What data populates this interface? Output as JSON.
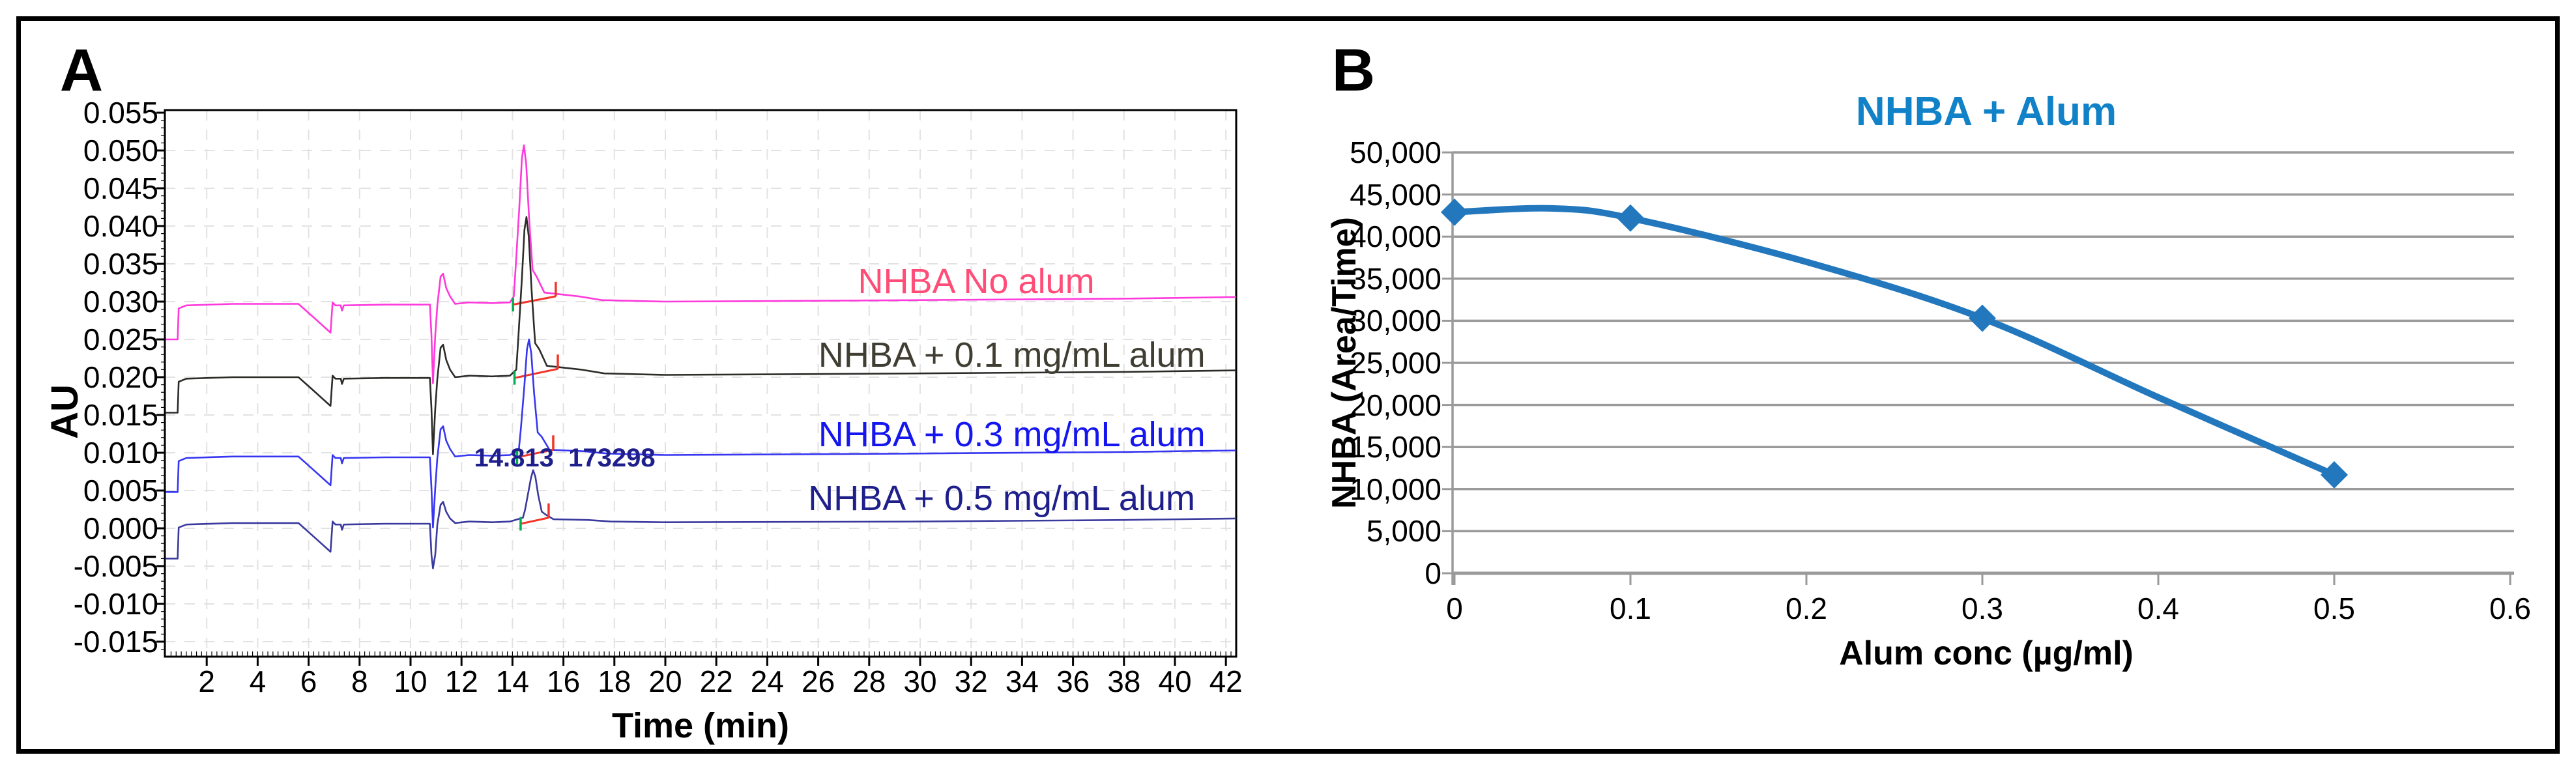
{
  "figure": {
    "panel_a_letter": "A",
    "panel_b_letter": "B"
  },
  "panel_a": {
    "y_axis_label": "AU",
    "x_axis_label": "Time (min)",
    "y_ticks": [
      "0.055",
      "0.050",
      "0.045",
      "0.040",
      "0.035",
      "0.030",
      "0.025",
      "0.020",
      "0.015",
      "0.010",
      "0.005",
      "0.000",
      "-0.005",
      "-0.010",
      "-0.015"
    ],
    "y_tick_values": [
      0.055,
      0.05,
      0.045,
      0.04,
      0.035,
      0.03,
      0.025,
      0.02,
      0.015,
      0.01,
      0.005,
      0.0,
      -0.005,
      -0.01,
      -0.015
    ],
    "x_ticks": [
      2,
      4,
      6,
      8,
      10,
      12,
      14,
      16,
      18,
      20,
      22,
      24,
      26,
      28,
      30,
      32,
      34,
      36,
      38,
      40,
      42
    ],
    "annotation": {
      "text": "14.813  173298",
      "t": 16.05,
      "au": 0.0093,
      "color": "#1F1F8C"
    },
    "integration_colors": {
      "line": "#F23528",
      "start_tick": "#00B050",
      "end_tick": "#F23528"
    }
  },
  "panel_b": {
    "title": "NHBA + Alum",
    "title_color": "#1182C8",
    "x_axis_label": "Alum conc (µg/ml)",
    "y_axis_label": "NHBA (Area/Time)",
    "y_ticks": [
      "50,000",
      "45,000",
      "40,000",
      "35,000",
      "30,000",
      "25,000",
      "20,000",
      "15,000",
      "10,000",
      "5,000",
      "0"
    ],
    "y_tick_values": [
      50000,
      45000,
      40000,
      35000,
      30000,
      25000,
      20000,
      15000,
      10000,
      5000,
      0
    ],
    "x_ticks": [
      "0",
      "0.1",
      "0.2",
      "0.3",
      "0.4",
      "0.5",
      "0.6"
    ],
    "x_tick_values": [
      0,
      0.1,
      0.2,
      0.3,
      0.4,
      0.5,
      0.6
    ],
    "grid_color": "#9A9A9A",
    "line_color": "#2277BD"
  },
  "chart_data": [
    {
      "type": "line",
      "subtype": "chromatogram-overlay",
      "xlabel": "Time (min)",
      "ylabel": "AU",
      "xlim": [
        0.4,
        42.4
      ],
      "ylim": [
        -0.017,
        0.0553
      ],
      "x_tick_step": 2,
      "y_tick_step": 0.005,
      "grid": "dashed-light",
      "series": [
        {
          "name": "NHBA No alum",
          "color": "#FF38DC",
          "baseline_au": 0.0295,
          "label": {
            "text": "NHBA No alum",
            "t": 32.2,
            "au": 0.0327,
            "color": "#FF4D78"
          },
          "integration": {
            "x1": 14.02,
            "y1": 0.0296,
            "x2": 15.7,
            "y2": 0.0307
          },
          "points": [
            [
              0.4,
              0.025
            ],
            [
              0.86,
              0.025
            ],
            [
              0.9,
              0.0291
            ],
            [
              1.2,
              0.0295
            ],
            [
              3.0,
              0.0297
            ],
            [
              5.6,
              0.0297
            ],
            [
              6.2,
              0.0279
            ],
            [
              6.86,
              0.0259
            ],
            [
              6.94,
              0.0299
            ],
            [
              7.05,
              0.0295
            ],
            [
              7.26,
              0.0295
            ],
            [
              7.31,
              0.0288
            ],
            [
              7.38,
              0.0295
            ],
            [
              9.0,
              0.0296
            ],
            [
              10.76,
              0.0296
            ],
            [
              10.82,
              0.0255
            ],
            [
              10.88,
              0.0192
            ],
            [
              10.97,
              0.0255
            ],
            [
              11.05,
              0.0295
            ],
            [
              11.18,
              0.0333
            ],
            [
              11.28,
              0.0337
            ],
            [
              11.4,
              0.0318
            ],
            [
              11.55,
              0.0307
            ],
            [
              11.75,
              0.0297
            ],
            [
              12.3,
              0.0299
            ],
            [
              13.2,
              0.0298
            ],
            [
              13.9,
              0.0299
            ],
            [
              14.05,
              0.0307
            ],
            [
              14.13,
              0.0348
            ],
            [
              14.27,
              0.0426
            ],
            [
              14.37,
              0.049
            ],
            [
              14.45,
              0.0507
            ],
            [
              14.54,
              0.0482
            ],
            [
              14.65,
              0.0412
            ],
            [
              14.79,
              0.0342
            ],
            [
              14.95,
              0.0333
            ],
            [
              15.25,
              0.0312
            ],
            [
              16.6,
              0.0307
            ],
            [
              17.5,
              0.0302
            ],
            [
              20.0,
              0.03
            ],
            [
              30.0,
              0.0302
            ],
            [
              38.0,
              0.0304
            ],
            [
              42.4,
              0.0306
            ]
          ]
        },
        {
          "name": "NHBA + 0.1 mg/mL alum",
          "color": "#2B2B28",
          "baseline_au": 0.0198,
          "label": {
            "text": "NHBA + 0.1 mg/mL alum",
            "t": 33.6,
            "au": 0.0229,
            "color": "#403E33"
          },
          "integration": {
            "x1": 14.08,
            "y1": 0.0199,
            "x2": 15.78,
            "y2": 0.0211
          },
          "points": [
            [
              0.4,
              0.0153
            ],
            [
              0.86,
              0.0153
            ],
            [
              0.9,
              0.0194
            ],
            [
              1.2,
              0.0198
            ],
            [
              3.0,
              0.02
            ],
            [
              5.6,
              0.02
            ],
            [
              6.2,
              0.0182
            ],
            [
              6.86,
              0.0162
            ],
            [
              6.94,
              0.0202
            ],
            [
              7.05,
              0.0198
            ],
            [
              7.26,
              0.0198
            ],
            [
              7.31,
              0.0191
            ],
            [
              7.38,
              0.0198
            ],
            [
              9.0,
              0.0199
            ],
            [
              10.76,
              0.0199
            ],
            [
              10.82,
              0.0158
            ],
            [
              10.88,
              0.0098
            ],
            [
              10.97,
              0.0158
            ],
            [
              11.05,
              0.0198
            ],
            [
              11.18,
              0.0239
            ],
            [
              11.28,
              0.0243
            ],
            [
              11.4,
              0.0223
            ],
            [
              11.55,
              0.021
            ],
            [
              11.75,
              0.02
            ],
            [
              12.3,
              0.0202
            ],
            [
              13.2,
              0.0201
            ],
            [
              13.9,
              0.0202
            ],
            [
              14.15,
              0.021
            ],
            [
              14.23,
              0.0252
            ],
            [
              14.37,
              0.0331
            ],
            [
              14.47,
              0.0395
            ],
            [
              14.55,
              0.0412
            ],
            [
              14.64,
              0.0386
            ],
            [
              14.75,
              0.0316
            ],
            [
              14.89,
              0.0245
            ],
            [
              15.05,
              0.0237
            ],
            [
              15.35,
              0.0215
            ],
            [
              16.7,
              0.021
            ],
            [
              17.6,
              0.0205
            ],
            [
              20.0,
              0.0203
            ],
            [
              30.0,
              0.0205
            ],
            [
              38.0,
              0.0207
            ],
            [
              42.4,
              0.0209
            ]
          ]
        },
        {
          "name": "NHBA + 0.3 mg/mL alum",
          "color": "#3636F2",
          "baseline_au": 0.0093,
          "label": {
            "text": "NHBA + 0.3 mg/mL alum",
            "t": 33.6,
            "au": 0.0124,
            "color": "#1515EE"
          },
          "integration": {
            "x1": 14.18,
            "y1": 0.0094,
            "x2": 15.6,
            "y2": 0.0104
          },
          "points": [
            [
              0.4,
              0.0048
            ],
            [
              0.86,
              0.0048
            ],
            [
              0.9,
              0.0089
            ],
            [
              1.2,
              0.0093
            ],
            [
              3.0,
              0.0095
            ],
            [
              5.6,
              0.0095
            ],
            [
              6.2,
              0.0077
            ],
            [
              6.86,
              0.0057
            ],
            [
              6.94,
              0.0097
            ],
            [
              7.05,
              0.0093
            ],
            [
              7.26,
              0.0093
            ],
            [
              7.31,
              0.0086
            ],
            [
              7.38,
              0.0093
            ],
            [
              9.0,
              0.0094
            ],
            [
              10.76,
              0.0094
            ],
            [
              10.82,
              0.0053
            ],
            [
              10.88,
              0.0001
            ],
            [
              10.97,
              0.0053
            ],
            [
              11.05,
              0.0093
            ],
            [
              11.18,
              0.0131
            ],
            [
              11.28,
              0.0135
            ],
            [
              11.4,
              0.0116
            ],
            [
              11.55,
              0.0105
            ],
            [
              11.75,
              0.0095
            ],
            [
              12.3,
              0.0097
            ],
            [
              13.2,
              0.0096
            ],
            [
              13.9,
              0.0097
            ],
            [
              14.25,
              0.0104
            ],
            [
              14.33,
              0.0132
            ],
            [
              14.47,
              0.019
            ],
            [
              14.57,
              0.0237
            ],
            [
              14.65,
              0.025
            ],
            [
              14.74,
              0.0231
            ],
            [
              14.85,
              0.0179
            ],
            [
              14.99,
              0.0127
            ],
            [
              15.15,
              0.0121
            ],
            [
              15.45,
              0.0104
            ],
            [
              16.8,
              0.0102
            ],
            [
              17.7,
              0.0099
            ],
            [
              20.0,
              0.0097
            ],
            [
              30.0,
              0.0099
            ],
            [
              38.0,
              0.0101
            ],
            [
              42.4,
              0.0103
            ]
          ]
        },
        {
          "name": "NHBA + 0.5 mg/mL alum",
          "color": "#3A3A9E",
          "baseline_au": 0.0005,
          "retention_time": 14.813,
          "peak_area": 173298,
          "label": {
            "text": "NHBA + 0.5 mg/mL alum",
            "t": 33.2,
            "au": 0.004,
            "color": "#1F1F8C"
          },
          "integration": {
            "x1": 14.32,
            "y1": 0.0006,
            "x2": 15.42,
            "y2": 0.0014
          },
          "points": [
            [
              0.4,
              -0.004
            ],
            [
              0.86,
              -0.004
            ],
            [
              0.9,
              0.0001
            ],
            [
              1.2,
              0.0005
            ],
            [
              3.0,
              0.0007
            ],
            [
              5.6,
              0.0007
            ],
            [
              6.2,
              -0.0011
            ],
            [
              6.86,
              -0.0031
            ],
            [
              6.94,
              0.0009
            ],
            [
              7.05,
              0.0005
            ],
            [
              7.26,
              0.0005
            ],
            [
              7.31,
              -0.0002
            ],
            [
              7.38,
              0.0005
            ],
            [
              9.0,
              0.0006
            ],
            [
              10.76,
              0.0006
            ],
            [
              10.82,
              -0.0035
            ],
            [
              10.88,
              -0.0053
            ],
            [
              10.97,
              -0.0035
            ],
            [
              11.05,
              0.0005
            ],
            [
              11.18,
              0.0031
            ],
            [
              11.28,
              0.0035
            ],
            [
              11.4,
              0.0022
            ],
            [
              11.55,
              0.0013
            ],
            [
              11.75,
              0.0007
            ],
            [
              12.3,
              0.0009
            ],
            [
              13.2,
              0.0008
            ],
            [
              13.9,
              0.0009
            ],
            [
              14.41,
              0.0014
            ],
            [
              14.49,
              0.0024
            ],
            [
              14.63,
              0.0049
            ],
            [
              14.73,
              0.0067
            ],
            [
              14.81,
              0.0077
            ],
            [
              14.9,
              0.0068
            ],
            [
              15.01,
              0.0044
            ],
            [
              15.15,
              0.0022
            ],
            [
              15.31,
              0.0018
            ],
            [
              15.61,
              0.0012
            ],
            [
              16.96,
              0.0011
            ],
            [
              17.86,
              0.0009
            ],
            [
              20.0,
              0.0008
            ],
            [
              30.0,
              0.0009
            ],
            [
              38.0,
              0.0011
            ],
            [
              42.4,
              0.0013
            ]
          ]
        }
      ]
    },
    {
      "type": "line",
      "title": "NHBA + Alum",
      "xlabel": "Alum conc (µg/ml)",
      "ylabel": "NHBA (Area/Time)",
      "x": [
        0,
        0.1,
        0.3,
        0.5
      ],
      "values": [
        42900,
        42200,
        30300,
        11700
      ],
      "smoothed_path": [
        [
          0,
          42900
        ],
        [
          0.055,
          43350
        ],
        [
          0.1,
          42200
        ],
        [
          0.2,
          37000
        ],
        [
          0.3,
          30300
        ],
        [
          0.4,
          20900
        ],
        [
          0.5,
          11700
        ]
      ],
      "xlim": [
        0,
        0.6
      ],
      "ylim": [
        0,
        50000
      ],
      "y_grid_step": 5000,
      "grid": "horizontal-solid",
      "legend": "none",
      "marker": "diamond"
    }
  ]
}
